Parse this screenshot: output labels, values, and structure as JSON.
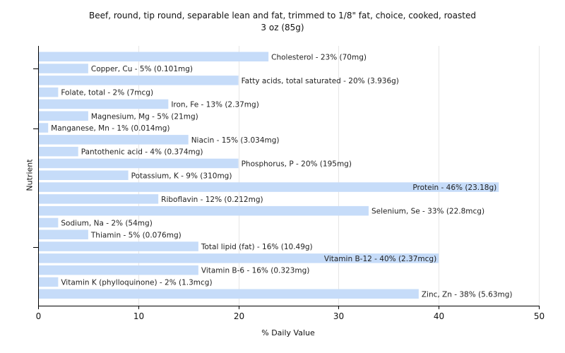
{
  "chart_data": {
    "type": "bar",
    "orientation": "horizontal",
    "title": "Beef, round, tip round, separable lean and fat, trimmed to 1/8\" fat, choice, cooked, roasted",
    "subtitle": "3 oz (85g)",
    "xlabel": "% Daily Value",
    "ylabel": "Nutrient",
    "xlim": [
      0,
      50
    ],
    "xticks": [
      "0",
      "10",
      "20",
      "30",
      "40",
      "50"
    ],
    "grid": true,
    "bar_color": "#c6dcf9",
    "categories": [
      "Cholesterol",
      "Copper, Cu",
      "Fatty acids, total saturated",
      "Folate, total",
      "Iron, Fe",
      "Magnesium, Mg",
      "Manganese, Mn",
      "Niacin",
      "Pantothenic acid",
      "Phosphorus, P",
      "Potassium, K",
      "Protein",
      "Riboflavin",
      "Selenium, Se",
      "Sodium, Na",
      "Thiamin",
      "Total lipid (fat)",
      "Vitamin B-12",
      "Vitamin B-6",
      "Vitamin K (phylloquinone)",
      "Zinc, Zn"
    ],
    "values": [
      23,
      5,
      20,
      2,
      13,
      5,
      1,
      15,
      4,
      20,
      9,
      46,
      12,
      33,
      2,
      5,
      16,
      40,
      16,
      2,
      38
    ],
    "labels": [
      "Cholesterol - 23% (70mg)",
      "Copper, Cu - 5% (0.101mg)",
      "Fatty acids, total saturated - 20% (3.936g)",
      "Folate, total - 2% (7mcg)",
      "Iron, Fe - 13% (2.37mg)",
      "Magnesium, Mg - 5% (21mg)",
      "Manganese, Mn - 1% (0.014mg)",
      "Niacin - 15% (3.034mg)",
      "Pantothenic acid - 4% (0.374mg)",
      "Phosphorus, P - 20% (195mg)",
      "Potassium, K - 9% (310mg)",
      "Protein - 46% (23.18g)",
      "Riboflavin - 12% (0.212mg)",
      "Selenium, Se - 33% (22.8mcg)",
      "Sodium, Na - 2% (54mg)",
      "Thiamin - 5% (0.076mg)",
      "Total lipid (fat) - 16% (10.49g)",
      "Vitamin B-12 - 40% (2.37mcg)",
      "Vitamin B-6 - 16% (0.323mg)",
      "Vitamin K (phylloquinone) - 2% (1.3mcg)",
      "Zinc, Zn - 38% (5.63mg)"
    ]
  }
}
